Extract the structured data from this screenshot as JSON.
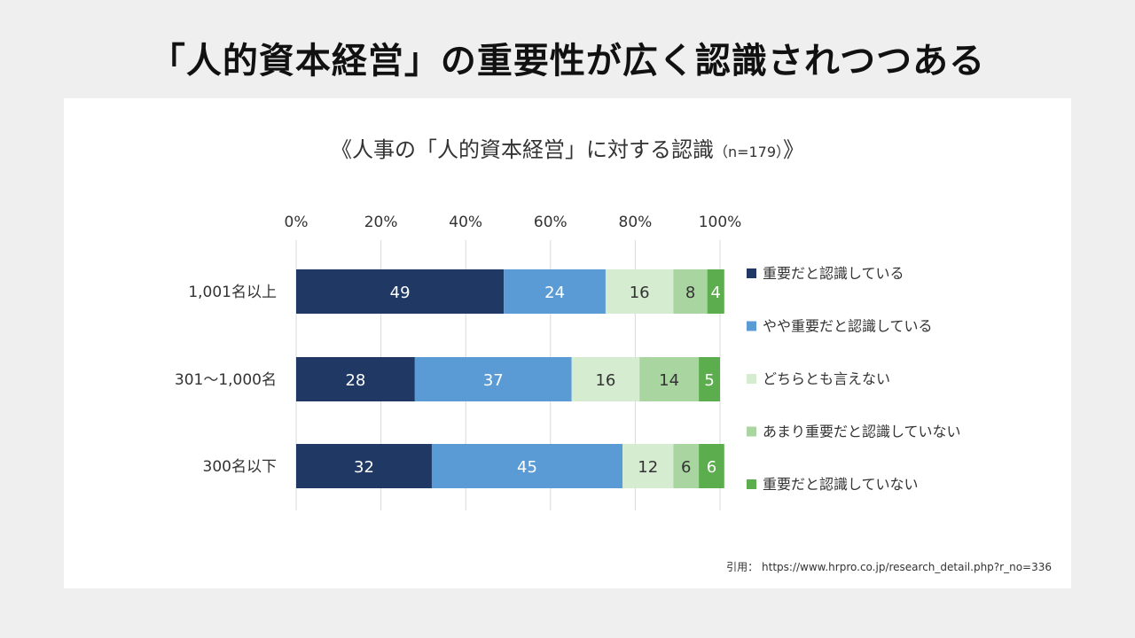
{
  "slide": {
    "title": "「人的資本経営」の重要性が広く認識されつつある"
  },
  "chart_title": {
    "main": "《人事の「人的資本経営」に対する認識",
    "sample": "（n=179）",
    "close": "》"
  },
  "citation": {
    "label": "引用：",
    "url": "https://www.hrpro.co.jp/research_detail.php?r_no=336"
  },
  "colors": {
    "s0": "#1f3864",
    "s1": "#5b9bd5",
    "s2": "#d5ecd0",
    "s3": "#a9d5a0",
    "s4": "#5cad4e",
    "grid": "#d9d9d9",
    "axis_text": "#333333"
  },
  "chart_data": {
    "type": "bar",
    "orientation": "horizontal",
    "stacked": true,
    "categories": [
      "1,001名以上",
      "301～1,000名",
      "300名以下"
    ],
    "series": [
      {
        "name": "重要だと認識している",
        "values": [
          49,
          28,
          32
        ]
      },
      {
        "name": "やや重要だと認識している",
        "values": [
          24,
          37,
          45
        ]
      },
      {
        "name": "どちらとも言えない",
        "values": [
          16,
          16,
          12
        ]
      },
      {
        "name": "あまり重要だと認識していない",
        "values": [
          8,
          14,
          6
        ]
      },
      {
        "name": "重要だと認識していない",
        "values": [
          4,
          5,
          6
        ]
      }
    ],
    "xlim": [
      0,
      100
    ],
    "xticks": [
      "0%",
      "20%",
      "40%",
      "60%",
      "80%",
      "100%"
    ],
    "xtick_values": [
      0,
      20,
      40,
      60,
      80,
      100
    ],
    "grid": true,
    "legend": "right"
  }
}
